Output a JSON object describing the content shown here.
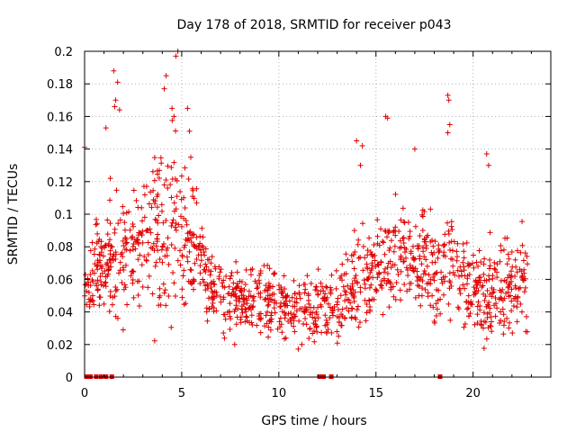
{
  "chart_data": {
    "type": "scatter",
    "title": "Day 178 of 2018, SRMTID for receiver p043",
    "xlabel": "GPS time / hours",
    "ylabel": "SRMTID / TECUs",
    "xlim": [
      0,
      24
    ],
    "ylim": [
      0,
      0.2
    ],
    "x_ticks": [
      0,
      5,
      10,
      15,
      20
    ],
    "x_tick_labels": [
      "0",
      "5",
      "10",
      "15",
      "20"
    ],
    "y_ticks": [
      0,
      0.02,
      0.04,
      0.06,
      0.08,
      0.1,
      0.12,
      0.14,
      0.16,
      0.18,
      0.2
    ],
    "y_tick_labels": [
      "0",
      "0.02",
      "0.04",
      "0.06",
      "0.08",
      "0.1",
      "0.12",
      "0.14",
      "0.16",
      "0.18",
      "0.2"
    ],
    "grid": "dotted",
    "marker": "plus",
    "color": "#e00000",
    "series": [
      {
        "name": "SRMTID",
        "envelope_hours": [
          0,
          0.5,
          1,
          1.5,
          2,
          2.5,
          3,
          3.5,
          4,
          4.5,
          5,
          5.5,
          6,
          6.5,
          7,
          8,
          9,
          10,
          11,
          12,
          12.5,
          13,
          14,
          15,
          15.5,
          16,
          17,
          18,
          18.5,
          19,
          19.5,
          20,
          21,
          22,
          22.8
        ],
        "envelope_median_tecu": [
          0.06,
          0.065,
          0.07,
          0.075,
          0.08,
          0.08,
          0.085,
          0.085,
          0.09,
          0.095,
          0.09,
          0.085,
          0.075,
          0.055,
          0.05,
          0.045,
          0.045,
          0.045,
          0.04,
          0.045,
          0.045,
          0.045,
          0.055,
          0.065,
          0.07,
          0.07,
          0.07,
          0.065,
          0.07,
          0.07,
          0.06,
          0.055,
          0.05,
          0.055,
          0.065
        ],
        "envelope_spread_tecu": [
          0.02,
          0.025,
          0.03,
          0.035,
          0.035,
          0.035,
          0.04,
          0.045,
          0.05,
          0.055,
          0.05,
          0.04,
          0.03,
          0.02,
          0.02,
          0.02,
          0.02,
          0.02,
          0.02,
          0.02,
          0.02,
          0.02,
          0.025,
          0.03,
          0.03,
          0.03,
          0.03,
          0.03,
          0.035,
          0.035,
          0.03,
          0.03,
          0.03,
          0.03,
          0.03
        ],
        "points_per_hour": 60,
        "max_hour": 22.8
      }
    ],
    "peak_points": [
      {
        "x": 1.5,
        "y": 0.188
      },
      {
        "x": 1.7,
        "y": 0.181
      },
      {
        "x": 1.6,
        "y": 0.17
      },
      {
        "x": 1.55,
        "y": 0.166
      },
      {
        "x": 1.8,
        "y": 0.164
      },
      {
        "x": 1.1,
        "y": 0.153
      },
      {
        "x": 4.2,
        "y": 0.185
      },
      {
        "x": 4.1,
        "y": 0.177
      },
      {
        "x": 4.7,
        "y": 0.197
      },
      {
        "x": 4.8,
        "y": 0.2
      },
      {
        "x": 4.5,
        "y": 0.165
      },
      {
        "x": 4.6,
        "y": 0.16
      },
      {
        "x": 5.3,
        "y": 0.165
      },
      {
        "x": 5.4,
        "y": 0.151
      },
      {
        "x": 0.0,
        "y": 0.141
      },
      {
        "x": 15.5,
        "y": 0.16
      },
      {
        "x": 15.6,
        "y": 0.159
      },
      {
        "x": 14.0,
        "y": 0.145
      },
      {
        "x": 14.3,
        "y": 0.142
      },
      {
        "x": 17.0,
        "y": 0.14
      },
      {
        "x": 18.7,
        "y": 0.173
      },
      {
        "x": 18.75,
        "y": 0.17
      },
      {
        "x": 18.8,
        "y": 0.155
      },
      {
        "x": 18.7,
        "y": 0.15
      },
      {
        "x": 20.7,
        "y": 0.137
      },
      {
        "x": 20.8,
        "y": 0.13
      },
      {
        "x": 14.2,
        "y": 0.13
      }
    ],
    "zero_points_hours": [
      0.1,
      0.3,
      0.6,
      0.85,
      1.1,
      1.4,
      12.1,
      12.3,
      12.7,
      18.3
    ]
  }
}
